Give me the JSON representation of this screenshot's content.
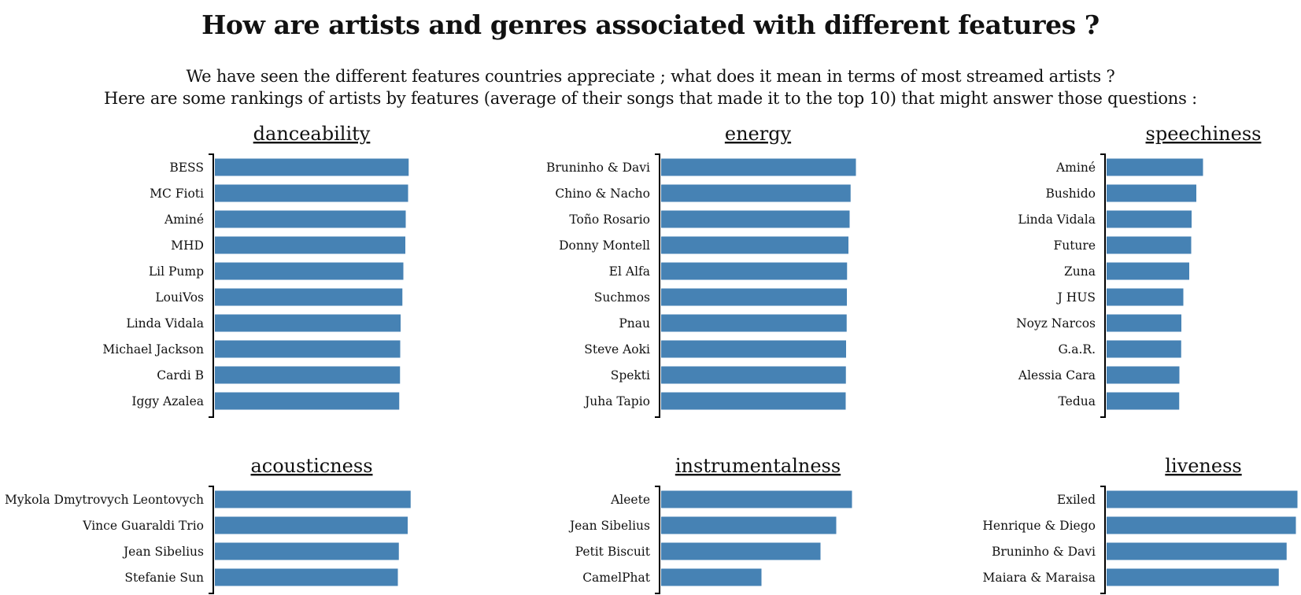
{
  "page": {
    "title": "How are artists and genres associated with different features ?",
    "intro_line1": "We have seen the different features countries appreciate ; what does it mean in terms of most streamed artists ?",
    "intro_line2": "Here are some rankings of artists by features (average of their songs that made it to the top 10) that might answer those questions :"
  },
  "colors": {
    "bar": "#4682b4",
    "axis": "#000000",
    "text": "#111111"
  },
  "chart_data": [
    {
      "type": "bar",
      "orientation": "horizontal",
      "title": "danceability",
      "categories": [
        "BESS",
        "MC Fioti",
        "Aminé",
        "MHD",
        "Lil Pump",
        "LouiVos",
        "Linda Vidala",
        "Michael Jackson",
        "Cardi B",
        "Iggy Azalea"
      ],
      "values": [
        0.985,
        0.982,
        0.97,
        0.968,
        0.958,
        0.953,
        0.944,
        0.942,
        0.941,
        0.937
      ],
      "xlim": [
        0,
        1
      ]
    },
    {
      "type": "bar",
      "orientation": "horizontal",
      "title": "energy",
      "categories": [
        "Bruninho & Davi",
        "Chino & Nacho",
        "Toño Rosario",
        "Donny Montell",
        "El Alfa",
        "Suchmos",
        "Pnau",
        "Steve Aoki",
        "Spekti",
        "Juha Tapio"
      ],
      "values": [
        0.99,
        0.963,
        0.958,
        0.952,
        0.945,
        0.944,
        0.943,
        0.94,
        0.939,
        0.938
      ],
      "xlim": [
        0,
        1
      ]
    },
    {
      "type": "bar",
      "orientation": "horizontal",
      "title": "speechiness",
      "categories": [
        "Aminé",
        "Bushido",
        "Linda Vidala",
        "Future",
        "Zuna",
        "J HUS",
        "Noyz Narcos",
        "G.a.R.",
        "Alessia Cara",
        "Tedua"
      ],
      "values": [
        0.49,
        0.456,
        0.432,
        0.43,
        0.42,
        0.39,
        0.38,
        0.379,
        0.37,
        0.369
      ],
      "xlim": [
        0,
        1
      ]
    },
    {
      "type": "bar",
      "orientation": "horizontal",
      "title": "acousticness",
      "categories": [
        "Mykola Dmytrovych Leontovych",
        "Vince Guaraldi Trio",
        "Jean Sibelius",
        "Stefanie Sun"
      ],
      "values": [
        0.995,
        0.98,
        0.935,
        0.93
      ],
      "xlim": [
        0,
        1
      ]
    },
    {
      "type": "bar",
      "orientation": "horizontal",
      "title": "instrumentalness",
      "categories": [
        "Aleete",
        "Jean Sibelius",
        "Petit Biscuit",
        "CamelPhat"
      ],
      "values": [
        0.97,
        0.89,
        0.81,
        0.51
      ],
      "xlim": [
        0,
        1
      ]
    },
    {
      "type": "bar",
      "orientation": "horizontal",
      "title": "liveness",
      "categories": [
        "Exiled",
        "Henrique & Diego",
        "Bruninho & Davi",
        "Maiara & Maraisa"
      ],
      "values": [
        0.97,
        0.962,
        0.915,
        0.875
      ],
      "xlim": [
        0,
        1
      ]
    }
  ]
}
